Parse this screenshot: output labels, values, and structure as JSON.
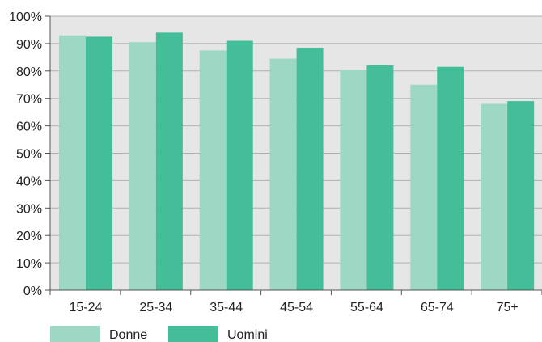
{
  "chart_data": {
    "type": "bar",
    "categories": [
      "15-24",
      "25-34",
      "35-44",
      "45-54",
      "55-64",
      "65-74",
      "75+"
    ],
    "series": [
      {
        "name": "Donne",
        "values": [
          93,
          90.5,
          87.5,
          84.5,
          80.5,
          75,
          68
        ],
        "color": "#9dd8c4"
      },
      {
        "name": "Uomini",
        "values": [
          92.5,
          94,
          91,
          88.5,
          82,
          81.5,
          69
        ],
        "color": "#44be98"
      }
    ],
    "yticks": [
      "0%",
      "10%",
      "20%",
      "30%",
      "40%",
      "50%",
      "60%",
      "70%",
      "80%",
      "90%",
      "100%"
    ],
    "ylim": [
      0,
      100
    ],
    "grid": true,
    "legend_position": "bottom-left",
    "plot_background": "#e6e6e6",
    "grid_color": "#b0b0b0",
    "axis_color": "#555555"
  }
}
